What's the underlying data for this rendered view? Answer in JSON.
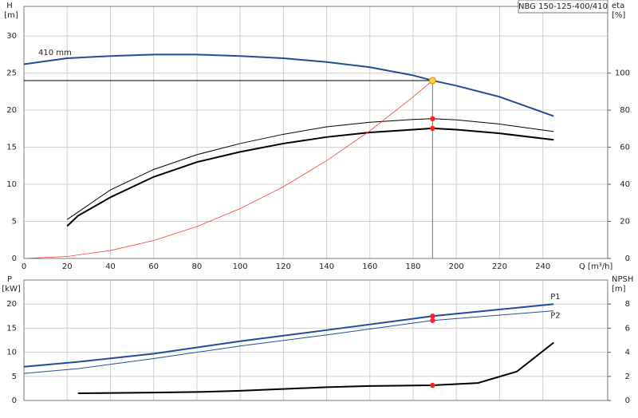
{
  "chart_data": [
    {
      "type": "line",
      "title": "NBG 150-125-400/410",
      "annotation": "410 mm",
      "ylabel": "H",
      "yunit": "[m]",
      "y2label": "eta",
      "y2unit": "[%]",
      "xlabel": "Q [m³/h]",
      "xlim": [
        0,
        270
      ],
      "xticks": [
        0,
        20,
        40,
        60,
        80,
        100,
        120,
        140,
        160,
        180,
        200,
        220,
        240
      ],
      "ylim": [
        0,
        34
      ],
      "yticks": [
        0,
        5,
        10,
        15,
        20,
        25,
        30
      ],
      "y2lim": [
        0,
        136
      ],
      "y2ticks": [
        0,
        20,
        40,
        60,
        80,
        100
      ],
      "grid": true,
      "show_xtick_labels": true,
      "duty_point": {
        "x": 189,
        "y": 24
      },
      "series": [
        {
          "color": "#1f4e96",
          "linewidth": 2,
          "axis": "y",
          "x": [
            0,
            20,
            40,
            60,
            80,
            100,
            120,
            140,
            160,
            180,
            189,
            200,
            220,
            245
          ],
          "values": [
            26.2,
            27.0,
            27.3,
            27.5,
            27.5,
            27.3,
            27.0,
            26.5,
            25.8,
            24.7,
            24.0,
            23.3,
            21.8,
            19.2
          ]
        },
        {
          "color": "#000000",
          "linewidth": 1,
          "axis": "y2",
          "x": [
            20,
            40,
            60,
            80,
            100,
            120,
            140,
            160,
            180,
            189,
            200,
            220,
            245
          ],
          "values": [
            21,
            37,
            48,
            56,
            62,
            67,
            71,
            73.5,
            75,
            75.4,
            74.8,
            72.5,
            68.5
          ]
        },
        {
          "color": "#000000",
          "linewidth": 2,
          "axis": "y2",
          "x": [
            20,
            25,
            40,
            60,
            80,
            100,
            120,
            140,
            160,
            180,
            189,
            200,
            220,
            245
          ],
          "values": [
            17.5,
            23,
            33,
            44,
            52,
            57.5,
            62,
            65.5,
            68,
            69.5,
            70.2,
            69.5,
            67.5,
            64
          ]
        },
        {
          "color": "#ff3b3b",
          "linewidth": 0.8,
          "axis": "y",
          "dot": false,
          "x": [
            0,
            20,
            40,
            60,
            80,
            100,
            120,
            140,
            160,
            180,
            189
          ],
          "values": [
            0,
            0.27,
            1.07,
            2.42,
            4.3,
            6.72,
            9.67,
            13.2,
            17.2,
            21.8,
            24.0
          ]
        }
      ]
    },
    {
      "type": "line",
      "ylabel": "P",
      "yunit": "[kW]",
      "y2label": "NPSH",
      "y2unit": "[m]",
      "xlim": [
        0,
        270
      ],
      "xticks": [
        0,
        20,
        40,
        60,
        80,
        100,
        120,
        140,
        160,
        180,
        200,
        220,
        240
      ],
      "ylim": [
        0,
        25
      ],
      "yticks": [
        0,
        5,
        10,
        15,
        20
      ],
      "y2lim": [
        0,
        10
      ],
      "y2ticks": [
        0,
        2,
        4,
        6,
        8
      ],
      "grid": true,
      "show_xtick_labels": false,
      "duty_q": 189,
      "series": [
        {
          "name": "P1",
          "color": "#1f4e96",
          "linewidth": 2,
          "axis": "y",
          "x": [
            0,
            25,
            60,
            100,
            140,
            189,
            245
          ],
          "values": [
            7.0,
            8.0,
            9.7,
            12.3,
            14.6,
            17.5,
            20.0
          ]
        },
        {
          "name": "P2",
          "color": "#1f4e96",
          "linewidth": 1,
          "axis": "y",
          "x": [
            0,
            25,
            60,
            100,
            140,
            189,
            245
          ],
          "values": [
            5.6,
            6.6,
            8.7,
            11.3,
            13.6,
            16.6,
            18.6
          ]
        },
        {
          "color": "#000000",
          "linewidth": 2,
          "axis": "y2",
          "x": [
            25,
            60,
            80,
            100,
            120,
            140,
            160,
            189,
            210,
            228,
            245
          ],
          "values": [
            0.6,
            0.65,
            0.7,
            0.8,
            0.95,
            1.1,
            1.2,
            1.26,
            1.45,
            2.4,
            4.8
          ]
        }
      ]
    }
  ]
}
